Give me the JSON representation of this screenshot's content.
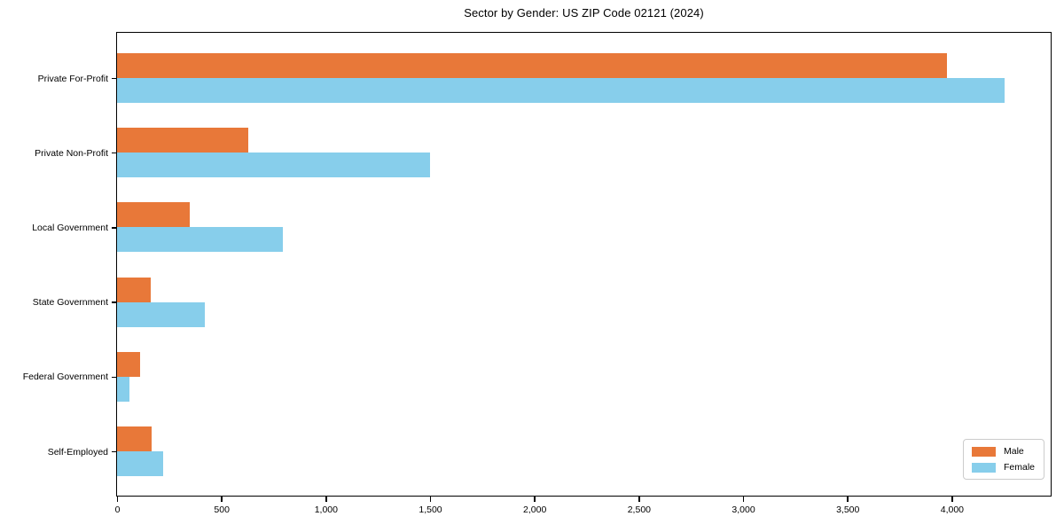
{
  "chart_data": {
    "type": "bar",
    "orientation": "horizontal",
    "title": "Sector by Gender: US ZIP Code 02121 (2024)",
    "categories": [
      "Private For-Profit",
      "Private Non-Profit",
      "Local Government",
      "State Government",
      "Federal Government",
      "Self-Employed"
    ],
    "series": [
      {
        "name": "Male",
        "color": "#e87839",
        "values": [
          3975,
          630,
          350,
          160,
          110,
          165
        ]
      },
      {
        "name": "Female",
        "color": "#87ceeb",
        "values": [
          4255,
          1500,
          795,
          420,
          60,
          220
        ]
      }
    ],
    "xlim": [
      0,
      4470
    ],
    "xticks": [
      0,
      500,
      1000,
      1500,
      2000,
      2500,
      3000,
      3500,
      4000
    ],
    "xtick_labels": [
      "0",
      "500",
      "1,000",
      "1,500",
      "2,000",
      "2,500",
      "3,000",
      "3,500",
      "4,000"
    ],
    "xlabel": "",
    "ylabel": "",
    "grid": false,
    "legend": {
      "position": "lower right"
    },
    "background_color": "#ffffff",
    "axis_color": "#000000"
  }
}
